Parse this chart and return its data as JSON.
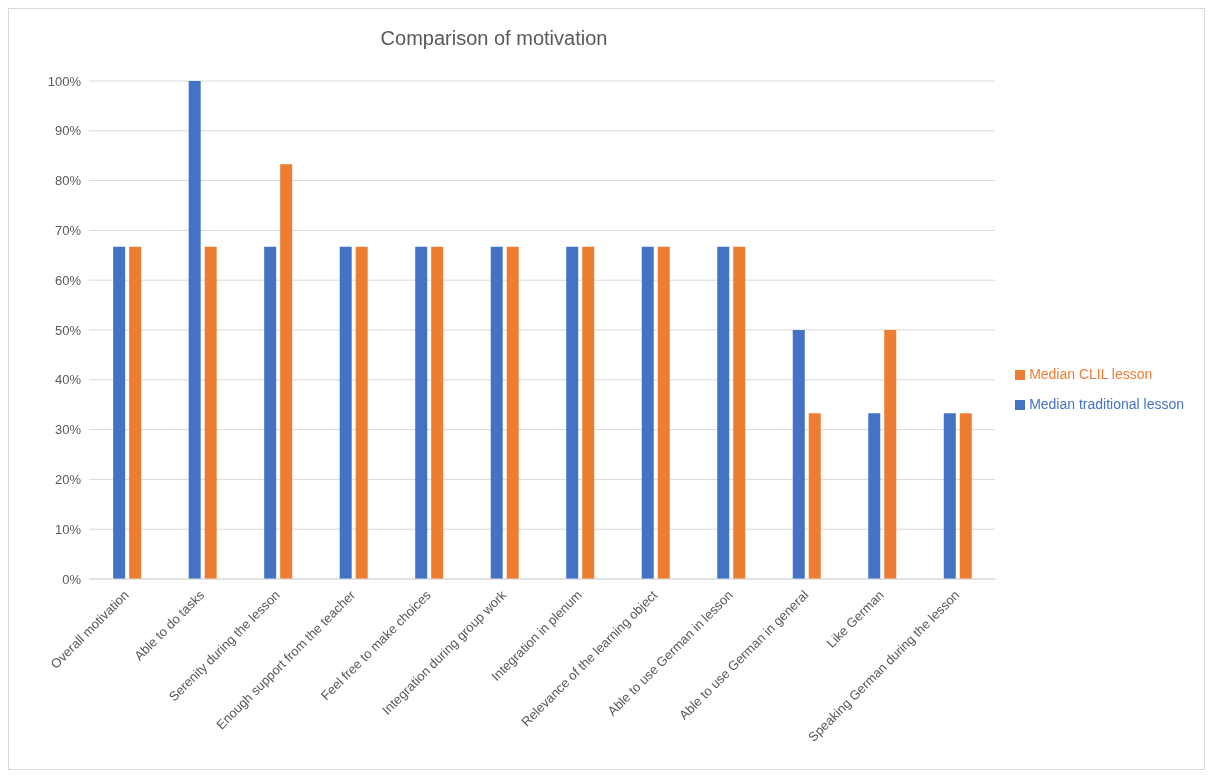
{
  "chart_data": {
    "type": "bar",
    "title": "Comparison of motivation",
    "categories": [
      "Overall motivation",
      "Able to do tasks",
      "Serenity during the lesson",
      "Enough support from the teacher",
      "Feel free to make choices",
      "Integration during group work",
      "Integration in plenum",
      "Relevance of the learning object",
      "Able to use German in lesson",
      "Able to use German in general",
      "Like German",
      "Speaking German during the lesson"
    ],
    "series": [
      {
        "name": "Median traditional lesson",
        "color": "#4472c4",
        "values": [
          66.7,
          100,
          66.7,
          66.7,
          66.7,
          66.7,
          66.7,
          66.7,
          66.7,
          50,
          33.3,
          33.3
        ]
      },
      {
        "name": "Median CLIL lesson",
        "color": "#ed7d31",
        "values": [
          66.7,
          66.7,
          83.3,
          66.7,
          66.7,
          66.7,
          66.7,
          66.7,
          66.7,
          33.3,
          50,
          33.3
        ]
      }
    ],
    "ylim": [
      0,
      100
    ],
    "yticks": [
      {
        "value": 0,
        "label": "0%"
      },
      {
        "value": 10,
        "label": "10%"
      },
      {
        "value": 20,
        "label": "20%"
      },
      {
        "value": 30,
        "label": "30%"
      },
      {
        "value": 40,
        "label": "40%"
      },
      {
        "value": 50,
        "label": "50%"
      },
      {
        "value": 60,
        "label": "60%"
      },
      {
        "value": 70,
        "label": "70%"
      },
      {
        "value": 80,
        "label": "80%"
      },
      {
        "value": 90,
        "label": "90%"
      },
      {
        "value": 100,
        "label": "100%"
      }
    ],
    "grid": "y",
    "legend": "right"
  }
}
